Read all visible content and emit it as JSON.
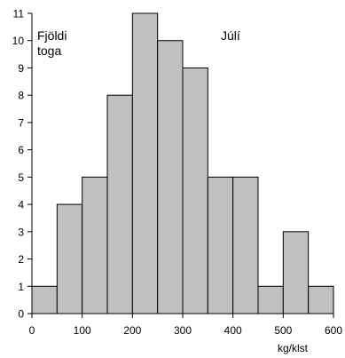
{
  "chart_data": {
    "type": "bar",
    "bin_edges": [
      0,
      50,
      100,
      150,
      200,
      250,
      300,
      350,
      400,
      450,
      500,
      550,
      600
    ],
    "values": [
      1,
      4,
      5,
      8,
      11,
      10,
      9,
      5,
      5,
      1,
      3,
      1
    ],
    "ylabel_lines": [
      "Fjöldi",
      "toga"
    ],
    "xlabel": "kg/klst",
    "annotation": "Júlí",
    "xlim": [
      0,
      600
    ],
    "ylim": [
      0,
      11
    ],
    "x_ticks": [
      0,
      100,
      200,
      300,
      400,
      500,
      600
    ],
    "y_ticks": [
      0,
      1,
      2,
      3,
      4,
      5,
      6,
      7,
      8,
      9,
      10,
      11
    ],
    "bar_color": "#c0c0c0",
    "edge_color": "#000000",
    "grid": false
  }
}
